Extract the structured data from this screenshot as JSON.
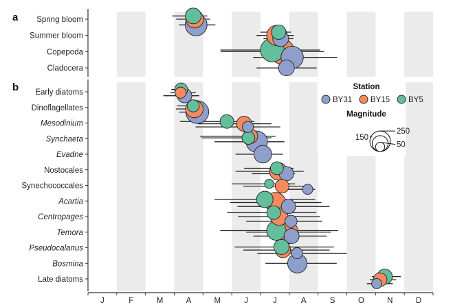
{
  "chart_data": {
    "type": "scatter",
    "panels": [
      {
        "label": "a",
        "rows": [
          "Spring bloom",
          "Summer bloom",
          "Copepoda",
          "Cladocera"
        ],
        "italic": [
          false,
          false,
          false,
          false
        ],
        "points": [
          {
            "row": 0,
            "station": "BY5",
            "x": 3.66,
            "lo": 2.93,
            "hi": 4.15,
            "mag": 120,
            "dy": -0.2
          },
          {
            "row": 0,
            "station": "BY15",
            "x": 3.71,
            "lo": 3.07,
            "hi": 4.25,
            "mag": 150,
            "dy": 0.0
          },
          {
            "row": 0,
            "station": "BY31",
            "x": 3.76,
            "lo": 3.17,
            "hi": 4.43,
            "mag": 230,
            "dy": 0.35
          },
          {
            "row": 1,
            "station": "BY15",
            "x": 6.57,
            "lo": 5.86,
            "hi": 7.16,
            "mag": 200,
            "dy": 0.0
          },
          {
            "row": 1,
            "station": "BY31",
            "x": 6.7,
            "lo": 6.1,
            "hi": 7.14,
            "mag": 120,
            "dy": 0.2
          },
          {
            "row": 1,
            "station": "BY5",
            "x": 6.63,
            "lo": 6.0,
            "hi": 7.06,
            "mag": 100,
            "dy": -0.2
          },
          {
            "row": 2,
            "station": "BY15",
            "x": 6.75,
            "lo": 4.62,
            "hi": 8.21,
            "mag": 300,
            "dy": 0.0
          },
          {
            "row": 2,
            "station": "BY5",
            "x": 6.41,
            "lo": 4.6,
            "hi": 8.08,
            "mag": 270,
            "dy": -0.1
          },
          {
            "row": 2,
            "station": "BY31",
            "x": 7.1,
            "lo": 5.74,
            "hi": 8.67,
            "mag": 240,
            "dy": 0.35
          },
          {
            "row": 3,
            "station": "BY31",
            "x": 6.9,
            "lo": 5.86,
            "hi": 7.95,
            "mag": 120,
            "dy": 0.0
          }
        ]
      },
      {
        "label": "b",
        "rows": [
          "Early diatoms",
          "Dinoflagellates",
          "Mesodinium",
          "Synchaeta",
          "Evadne",
          "Nostocales",
          "Synechococcales",
          "Acartia",
          "Centropages",
          "Temora",
          "Pseudocalanus",
          "Bosmina",
          "Late diatoms"
        ],
        "italic": [
          false,
          false,
          true,
          true,
          true,
          false,
          false,
          true,
          true,
          true,
          true,
          true,
          false
        ],
        "points": [
          {
            "row": 0,
            "station": "BY15",
            "x": 3.22,
            "lo": 2.86,
            "hi": 3.75,
            "mag": 60,
            "dy": 0.05
          },
          {
            "row": 0,
            "station": "BY5",
            "x": 3.24,
            "lo": 2.9,
            "hi": 3.51,
            "mag": 80,
            "dy": -0.15
          },
          {
            "row": 0,
            "station": "BY31",
            "x": 3.36,
            "lo": 2.62,
            "hi": 3.87,
            "mag": 100,
            "dy": 0.25
          },
          {
            "row": 1,
            "station": "BY31",
            "x": 3.8,
            "lo": 3.17,
            "hi": 4.16,
            "mag": 250,
            "dy": 0.3
          },
          {
            "row": 1,
            "station": "BY15",
            "x": 3.7,
            "lo": 3.06,
            "hi": 4.2,
            "mag": 150,
            "dy": 0.1
          },
          {
            "row": 1,
            "station": "BY5",
            "x": 3.66,
            "lo": 3.1,
            "hi": 4.1,
            "mag": 70,
            "dy": -0.1
          },
          {
            "row": 2,
            "station": "BY5",
            "x": 4.83,
            "lo": 3.2,
            "hi": 5.78,
            "mag": 90,
            "dy": -0.1
          },
          {
            "row": 2,
            "station": "BY15",
            "x": 5.43,
            "lo": 3.82,
            "hi": 6.38,
            "mag": 110,
            "dy": 0.05
          },
          {
            "row": 2,
            "station": "BY31",
            "x": 5.56,
            "lo": 3.74,
            "hi": 6.69,
            "mag": 60,
            "dy": 0.25
          },
          {
            "row": 3,
            "station": "BY15",
            "x": 5.65,
            "lo": 3.9,
            "hi": 6.52,
            "mag": 100,
            "dy": -0.15
          },
          {
            "row": 3,
            "station": "BY5",
            "x": 5.58,
            "lo": 3.95,
            "hi": 6.38,
            "mag": 80,
            "dy": -0.05
          },
          {
            "row": 3,
            "station": "BY31",
            "x": 5.87,
            "lo": 4.4,
            "hi": 6.83,
            "mag": 220,
            "dy": 0.2
          },
          {
            "row": 4,
            "station": "BY31",
            "x": 6.08,
            "lo": 5.13,
            "hi": 6.78,
            "mag": 150,
            "dy": 0.0
          },
          {
            "row": 5,
            "station": "BY15",
            "x": 6.62,
            "lo": 5.13,
            "hi": 7.5,
            "mag": 150,
            "dy": 0.1
          },
          {
            "row": 5,
            "station": "BY5",
            "x": 6.57,
            "lo": 5.43,
            "hi": 7.15,
            "mag": 80,
            "dy": -0.1
          },
          {
            "row": 5,
            "station": "BY31",
            "x": 6.9,
            "lo": 5.7,
            "hi": 7.2,
            "mag": 100,
            "dy": 0.25
          },
          {
            "row": 6,
            "station": "BY5",
            "x": 6.3,
            "lo": 5.0,
            "hi": 7.2,
            "mag": 40,
            "dy": -0.1
          },
          {
            "row": 6,
            "station": "BY15",
            "x": 6.75,
            "lo": 5.4,
            "hi": 7.5,
            "mag": 90,
            "dy": 0.05
          },
          {
            "row": 6,
            "station": "BY31",
            "x": 7.64,
            "lo": 6.6,
            "hi": 7.9,
            "mag": 50,
            "dy": 0.25
          },
          {
            "row": 7,
            "station": "BY15",
            "x": 6.52,
            "lo": 4.94,
            "hi": 8.12,
            "mag": 200,
            "dy": 0.1
          },
          {
            "row": 7,
            "station": "BY5",
            "x": 6.15,
            "lo": 4.4,
            "hi": 7.9,
            "mag": 130,
            "dy": -0.1
          },
          {
            "row": 7,
            "station": "BY31",
            "x": 6.97,
            "lo": 5.2,
            "hi": 8.4,
            "mag": 100,
            "dy": 0.35
          },
          {
            "row": 8,
            "station": "BY15",
            "x": 6.65,
            "lo": 5.22,
            "hi": 8.07,
            "mag": 150,
            "dy": 0.0
          },
          {
            "row": 8,
            "station": "BY5",
            "x": 6.46,
            "lo": 4.84,
            "hi": 7.94,
            "mag": 90,
            "dy": -0.25
          },
          {
            "row": 8,
            "station": "BY31",
            "x": 7.06,
            "lo": 5.5,
            "hi": 8.15,
            "mag": 70,
            "dy": 0.3
          },
          {
            "row": 9,
            "station": "BY15",
            "x": 6.87,
            "lo": 5.5,
            "hi": 8.45,
            "mag": 300,
            "dy": 0.0
          },
          {
            "row": 9,
            "station": "BY5",
            "x": 6.55,
            "lo": 4.6,
            "hi": 8.7,
            "mag": 180,
            "dy": -0.1
          },
          {
            "row": 9,
            "station": "BY31",
            "x": 7.08,
            "lo": 5.75,
            "hi": 8.3,
            "mag": 110,
            "dy": 0.25
          },
          {
            "row": 10,
            "station": "BY15",
            "x": 6.78,
            "lo": 5.4,
            "hi": 8.4,
            "mag": 110,
            "dy": 0.15
          },
          {
            "row": 10,
            "station": "BY5",
            "x": 6.73,
            "lo": 5.1,
            "hi": 8.55,
            "mag": 110,
            "dy": -0.05
          },
          {
            "row": 10,
            "station": "BY31",
            "x": 7.27,
            "lo": 5.89,
            "hi": 9.0,
            "mag": 60,
            "dy": 0.35
          },
          {
            "row": 11,
            "station": "BY31",
            "x": 7.28,
            "lo": 6.17,
            "hi": 8.65,
            "mag": 180,
            "dy": 0.0
          },
          {
            "row": 12,
            "station": "BY15",
            "x": 10.16,
            "lo": 9.8,
            "hi": 10.72,
            "mag": 90,
            "dy": 0.05
          },
          {
            "row": 12,
            "station": "BY5",
            "x": 10.32,
            "lo": 9.87,
            "hi": 10.88,
            "mag": 110,
            "dy": -0.15
          },
          {
            "row": 12,
            "station": "BY31",
            "x": 10.04,
            "lo": 9.7,
            "hi": 10.6,
            "mag": 50,
            "dy": 0.3
          }
        ]
      }
    ],
    "x_ticks": [
      "J",
      "F",
      "M",
      "A",
      "M",
      "J",
      "J",
      "A",
      "S",
      "O",
      "N",
      "D"
    ],
    "xlim": [
      0,
      12
    ],
    "shaded_months": [
      1,
      3,
      5,
      7,
      9,
      11
    ],
    "legend": {
      "station_title": "Station",
      "stations": [
        {
          "name": "BY31",
          "color": "#8d9fca"
        },
        {
          "name": "BY15",
          "color": "#f58a5e"
        },
        {
          "name": "BY5",
          "color": "#63bf9b"
        }
      ],
      "magnitude_title": "Magnitude",
      "magnitude_values": [
        250,
        150,
        50
      ],
      "placement": "right"
    },
    "xlabel": "",
    "ylabel": "",
    "title": ""
  }
}
